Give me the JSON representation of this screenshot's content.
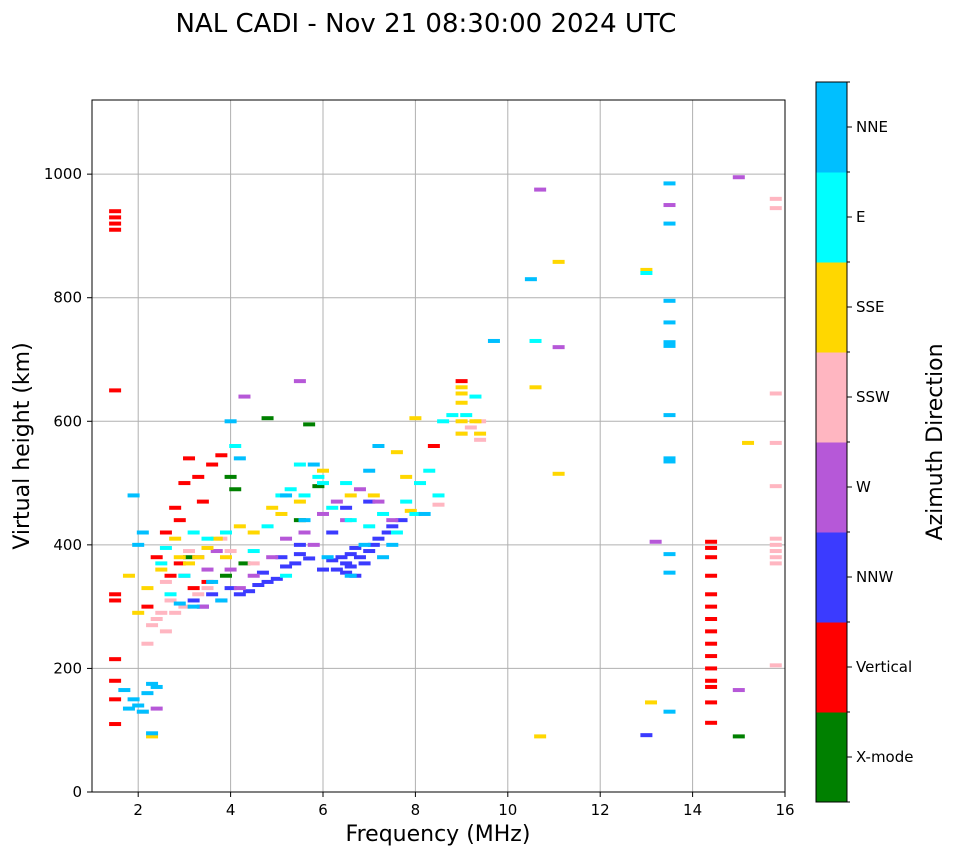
{
  "chart_data": {
    "type": "scatter",
    "title": "NAL CADI - Nov 21 08:30:00 2024 UTC",
    "xlabel": "Frequency (MHz)",
    "ylabel": "Virtual height (km)",
    "xlim": [
      1,
      16
    ],
    "ylim": [
      0,
      1120
    ],
    "xticks": [
      2,
      4,
      6,
      8,
      10,
      12,
      14,
      16
    ],
    "yticks": [
      0,
      200,
      400,
      600,
      800,
      1000
    ],
    "grid": true,
    "colorbar": {
      "label": "Azimuth Direction",
      "categories": [
        {
          "name": "X-mode",
          "color": "#008000"
        },
        {
          "name": "Vertical",
          "color": "#ff0000"
        },
        {
          "name": "NNW",
          "color": "#3b3bff"
        },
        {
          "name": "W",
          "color": "#b658d8"
        },
        {
          "name": "SSW",
          "color": "#ffb6c1"
        },
        {
          "name": "SSE",
          "color": "#ffd700"
        },
        {
          "name": "E",
          "color": "#00ffff"
        },
        {
          "name": "NNE",
          "color": "#00bfff"
        }
      ]
    },
    "series": [
      {
        "name": "X-mode",
        "points": [
          [
            3.9,
            350
          ],
          [
            4,
            510
          ],
          [
            4.1,
            490
          ],
          [
            4.8,
            605
          ],
          [
            5.5,
            440
          ],
          [
            5.7,
            595
          ],
          [
            5.9,
            495
          ],
          [
            4.3,
            370
          ],
          [
            3.1,
            380
          ],
          [
            15,
            90
          ]
        ]
      },
      {
        "name": "Vertical",
        "points": [
          [
            1.5,
            940
          ],
          [
            1.5,
            930
          ],
          [
            1.5,
            920
          ],
          [
            1.5,
            910
          ],
          [
            1.5,
            650
          ],
          [
            1.5,
            320
          ],
          [
            1.5,
            310
          ],
          [
            1.5,
            215
          ],
          [
            1.5,
            180
          ],
          [
            1.5,
            150
          ],
          [
            1.5,
            110
          ],
          [
            2.2,
            300
          ],
          [
            2.6,
            420
          ],
          [
            2.8,
            460
          ],
          [
            2.9,
            440
          ],
          [
            3,
            500
          ],
          [
            3.1,
            540
          ],
          [
            3.3,
            510
          ],
          [
            3.4,
            470
          ],
          [
            3.6,
            530
          ],
          [
            3.8,
            545
          ],
          [
            2.4,
            380
          ],
          [
            2.7,
            350
          ],
          [
            2.9,
            370
          ],
          [
            3.2,
            330
          ],
          [
            3.5,
            340
          ],
          [
            8.4,
            560
          ],
          [
            9,
            665
          ],
          [
            14.4,
            405
          ],
          [
            14.4,
            395
          ],
          [
            14.4,
            380
          ],
          [
            14.4,
            350
          ],
          [
            14.4,
            320
          ],
          [
            14.4,
            300
          ],
          [
            14.4,
            280
          ],
          [
            14.4,
            260
          ],
          [
            14.4,
            240
          ],
          [
            14.4,
            220
          ],
          [
            14.4,
            200
          ],
          [
            14.4,
            180
          ],
          [
            14.4,
            170
          ],
          [
            14.4,
            145
          ],
          [
            14.4,
            112
          ]
        ]
      },
      {
        "name": "NNW",
        "points": [
          [
            3.2,
            310
          ],
          [
            3.4,
            300
          ],
          [
            3.6,
            320
          ],
          [
            3.8,
            310
          ],
          [
            4,
            330
          ],
          [
            4.2,
            320
          ],
          [
            4.4,
            325
          ],
          [
            4.6,
            335
          ],
          [
            4.8,
            340
          ],
          [
            5,
            345
          ],
          [
            5.2,
            365
          ],
          [
            5.4,
            370
          ],
          [
            5.5,
            385
          ],
          [
            5.7,
            378
          ],
          [
            6,
            360
          ],
          [
            6.2,
            375
          ],
          [
            6.4,
            380
          ],
          [
            6.5,
            370
          ],
          [
            6.6,
            385
          ],
          [
            6.7,
            395
          ],
          [
            6.8,
            380
          ],
          [
            7,
            390
          ],
          [
            7.1,
            400
          ],
          [
            7.2,
            410
          ],
          [
            7.4,
            420
          ],
          [
            7.5,
            430
          ],
          [
            7.7,
            440
          ],
          [
            6.3,
            360
          ],
          [
            6.5,
            355
          ],
          [
            6.9,
            370
          ],
          [
            6.6,
            365
          ],
          [
            6.2,
            420
          ],
          [
            6.5,
            460
          ],
          [
            7,
            470
          ],
          [
            5.5,
            400
          ],
          [
            5.1,
            380
          ],
          [
            4.7,
            355
          ],
          [
            6.7,
            350
          ],
          [
            13,
            92
          ]
        ]
      },
      {
        "name": "W",
        "points": [
          [
            3,
            350
          ],
          [
            3.3,
            380
          ],
          [
            3.5,
            360
          ],
          [
            4,
            360
          ],
          [
            4.5,
            350
          ],
          [
            4.9,
            380
          ],
          [
            5.2,
            410
          ],
          [
            5.6,
            420
          ],
          [
            6,
            450
          ],
          [
            6.3,
            470
          ],
          [
            6.5,
            440
          ],
          [
            6.8,
            490
          ],
          [
            7.2,
            470
          ],
          [
            7.5,
            440
          ],
          [
            2.4,
            135
          ],
          [
            4.3,
            640
          ],
          [
            5.5,
            665
          ],
          [
            10.7,
            975
          ],
          [
            11.1,
            720
          ],
          [
            13.2,
            405
          ],
          [
            13.5,
            950
          ],
          [
            15,
            995
          ],
          [
            15,
            165
          ],
          [
            3.7,
            390
          ],
          [
            3.4,
            300
          ],
          [
            5.8,
            400
          ],
          [
            4.2,
            330
          ]
        ]
      },
      {
        "name": "SSW",
        "points": [
          [
            2.2,
            240
          ],
          [
            2.3,
            270
          ],
          [
            2.4,
            280
          ],
          [
            2.5,
            290
          ],
          [
            2.6,
            260
          ],
          [
            2.8,
            290
          ],
          [
            3,
            300
          ],
          [
            3.3,
            320
          ],
          [
            3.5,
            330
          ],
          [
            3.8,
            410
          ],
          [
            4,
            390
          ],
          [
            2.7,
            310
          ],
          [
            8.5,
            465
          ],
          [
            9,
            580
          ],
          [
            9.2,
            590
          ],
          [
            9.4,
            570
          ],
          [
            9.4,
            600
          ],
          [
            15.8,
            960
          ],
          [
            15.8,
            945
          ],
          [
            15.8,
            645
          ],
          [
            15.8,
            565
          ],
          [
            15.8,
            495
          ],
          [
            15.8,
            410
          ],
          [
            15.8,
            400
          ],
          [
            15.8,
            390
          ],
          [
            15.8,
            380
          ],
          [
            15.8,
            370
          ],
          [
            15.8,
            205
          ],
          [
            2.1,
            130
          ],
          [
            2.6,
            340
          ],
          [
            3.1,
            390
          ],
          [
            4.5,
            370
          ]
        ]
      },
      {
        "name": "SSE",
        "points": [
          [
            1.8,
            350
          ],
          [
            2,
            290
          ],
          [
            2.2,
            330
          ],
          [
            2.5,
            360
          ],
          [
            2.9,
            380
          ],
          [
            3.1,
            370
          ],
          [
            3.3,
            380
          ],
          [
            3.5,
            395
          ],
          [
            3.7,
            410
          ],
          [
            4.2,
            430
          ],
          [
            4.5,
            420
          ],
          [
            4.9,
            460
          ],
          [
            5.1,
            450
          ],
          [
            5.5,
            470
          ],
          [
            7.1,
            480
          ],
          [
            7.6,
            550
          ],
          [
            7.8,
            510
          ],
          [
            7.9,
            455
          ],
          [
            8,
            605
          ],
          [
            9,
            580
          ],
          [
            9,
            600
          ],
          [
            9,
            630
          ],
          [
            9,
            645
          ],
          [
            9,
            655
          ],
          [
            9.3,
            600
          ],
          [
            9.4,
            580
          ],
          [
            10.6,
            655
          ],
          [
            10.7,
            90
          ],
          [
            11.1,
            515
          ],
          [
            11.1,
            858
          ],
          [
            13,
            845
          ],
          [
            13.1,
            145
          ],
          [
            15.2,
            565
          ],
          [
            2.3,
            90
          ],
          [
            2.8,
            410
          ],
          [
            6,
            520
          ],
          [
            6.6,
            480
          ],
          [
            3.9,
            380
          ]
        ]
      },
      {
        "name": "E",
        "points": [
          [
            2.5,
            370
          ],
          [
            2.7,
            320
          ],
          [
            3,
            350
          ],
          [
            3.2,
            420
          ],
          [
            3.5,
            410
          ],
          [
            3.9,
            420
          ],
          [
            4.5,
            390
          ],
          [
            4.8,
            430
          ],
          [
            5.1,
            480
          ],
          [
            5.3,
            490
          ],
          [
            5.6,
            480
          ],
          [
            5.9,
            510
          ],
          [
            6,
            500
          ],
          [
            6.2,
            460
          ],
          [
            6.6,
            440
          ],
          [
            7,
            430
          ],
          [
            7.3,
            450
          ],
          [
            7.6,
            420
          ],
          [
            7.8,
            470
          ],
          [
            8,
            450
          ],
          [
            8.1,
            500
          ],
          [
            8.3,
            520
          ],
          [
            8.5,
            480
          ],
          [
            8.6,
            600
          ],
          [
            8.8,
            610
          ],
          [
            9.1,
            610
          ],
          [
            9.3,
            640
          ],
          [
            10.6,
            730
          ],
          [
            13,
            840
          ],
          [
            5.5,
            530
          ],
          [
            6.5,
            500
          ],
          [
            2.6,
            395
          ],
          [
            5.2,
            350
          ],
          [
            4.1,
            560
          ]
        ]
      },
      {
        "name": "NNE",
        "points": [
          [
            1.9,
            480
          ],
          [
            2,
            400
          ],
          [
            2.1,
            420
          ],
          [
            1.9,
            150
          ],
          [
            2,
            140
          ],
          [
            2.2,
            160
          ],
          [
            2.3,
            175
          ],
          [
            2.4,
            170
          ],
          [
            2.1,
            130
          ],
          [
            1.8,
            135
          ],
          [
            1.7,
            165
          ],
          [
            2.3,
            95
          ],
          [
            2.9,
            305
          ],
          [
            3.2,
            300
          ],
          [
            3.6,
            340
          ],
          [
            3.8,
            310
          ],
          [
            4,
            600
          ],
          [
            4.2,
            540
          ],
          [
            5.2,
            480
          ],
          [
            5.6,
            440
          ],
          [
            5.8,
            530
          ],
          [
            6.6,
            350
          ],
          [
            7,
            520
          ],
          [
            7.2,
            560
          ],
          [
            7.5,
            400
          ],
          [
            8.2,
            450
          ],
          [
            9.7,
            730
          ],
          [
            10.5,
            830
          ],
          [
            13.5,
            985
          ],
          [
            13.5,
            920
          ],
          [
            13.5,
            795
          ],
          [
            13.5,
            760
          ],
          [
            13.5,
            728
          ],
          [
            13.5,
            722
          ],
          [
            13.5,
            610
          ],
          [
            13.5,
            540
          ],
          [
            13.5,
            535
          ],
          [
            13.5,
            385
          ],
          [
            13.5,
            355
          ],
          [
            13.5,
            130
          ],
          [
            6.1,
            380
          ],
          [
            6.9,
            400
          ],
          [
            7.3,
            380
          ]
        ]
      }
    ]
  }
}
